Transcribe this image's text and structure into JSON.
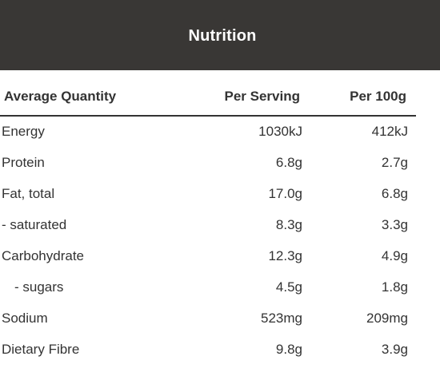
{
  "header": {
    "title": "Nutrition"
  },
  "table": {
    "columns": [
      "Average Quantity",
      "Per Serving",
      "Per 100g"
    ],
    "rows": [
      {
        "label": "Energy",
        "serving": "1030kJ",
        "per100": "412kJ"
      },
      {
        "label": "Protein",
        "serving": "6.8g",
        "per100": "2.7g"
      },
      {
        "label": "Fat, total",
        "serving": "17.0g",
        "per100": "6.8g"
      },
      {
        "label": "- saturated",
        "serving": "8.3g",
        "per100": "3.3g"
      },
      {
        "label": "Carbohydrate",
        "serving": "12.3g",
        "per100": "4.9g"
      },
      {
        "label": "- sugars",
        "serving": "4.5g",
        "per100": "1.8g"
      },
      {
        "label": "Sodium",
        "serving": "523mg",
        "per100": "209mg"
      },
      {
        "label": "Dietary Fibre",
        "serving": "9.8g",
        "per100": "3.9g"
      }
    ]
  }
}
